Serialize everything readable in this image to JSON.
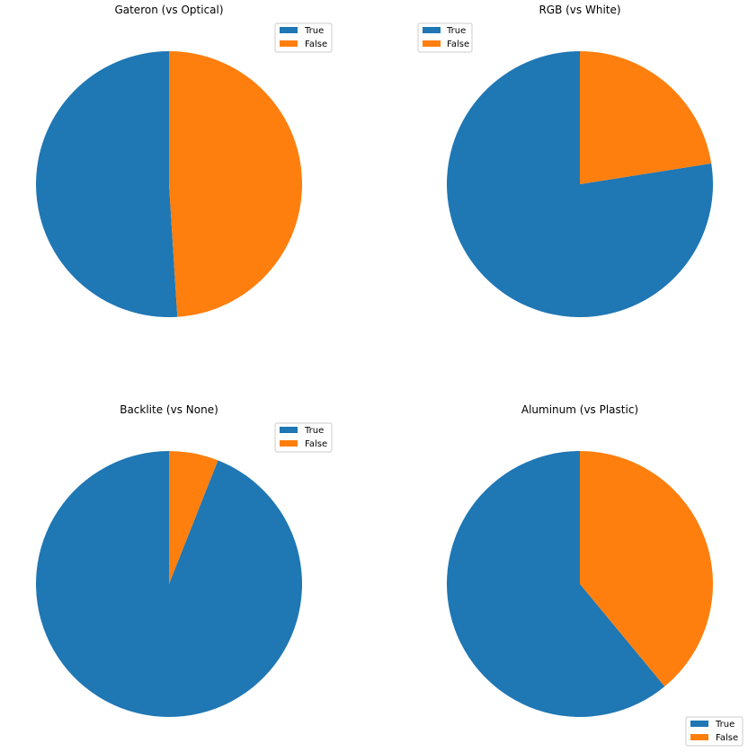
{
  "chart_data": [
    {
      "type": "pie",
      "title": "Gateron (vs Optical)",
      "categories": [
        "True",
        "False"
      ],
      "values": [
        51,
        49
      ],
      "colors": [
        "#1f77b4",
        "#ff7f0e"
      ],
      "legend_placement": "upper right"
    },
    {
      "type": "pie",
      "title": "RGB (vs White)",
      "categories": [
        "True",
        "False"
      ],
      "values": [
        77.5,
        22.5
      ],
      "colors": [
        "#1f77b4",
        "#ff7f0e"
      ],
      "legend_placement": "upper left"
    },
    {
      "type": "pie",
      "title": "Backlite (vs None)",
      "categories": [
        "True",
        "False"
      ],
      "values": [
        94,
        6
      ],
      "colors": [
        "#1f77b4",
        "#ff7f0e"
      ],
      "legend_placement": "upper right"
    },
    {
      "type": "pie",
      "title": "Aluminum (vs Plastic)",
      "categories": [
        "True",
        "False"
      ],
      "values": [
        61,
        39
      ],
      "colors": [
        "#1f77b4",
        "#ff7f0e"
      ],
      "legend_placement": "lower right"
    }
  ]
}
